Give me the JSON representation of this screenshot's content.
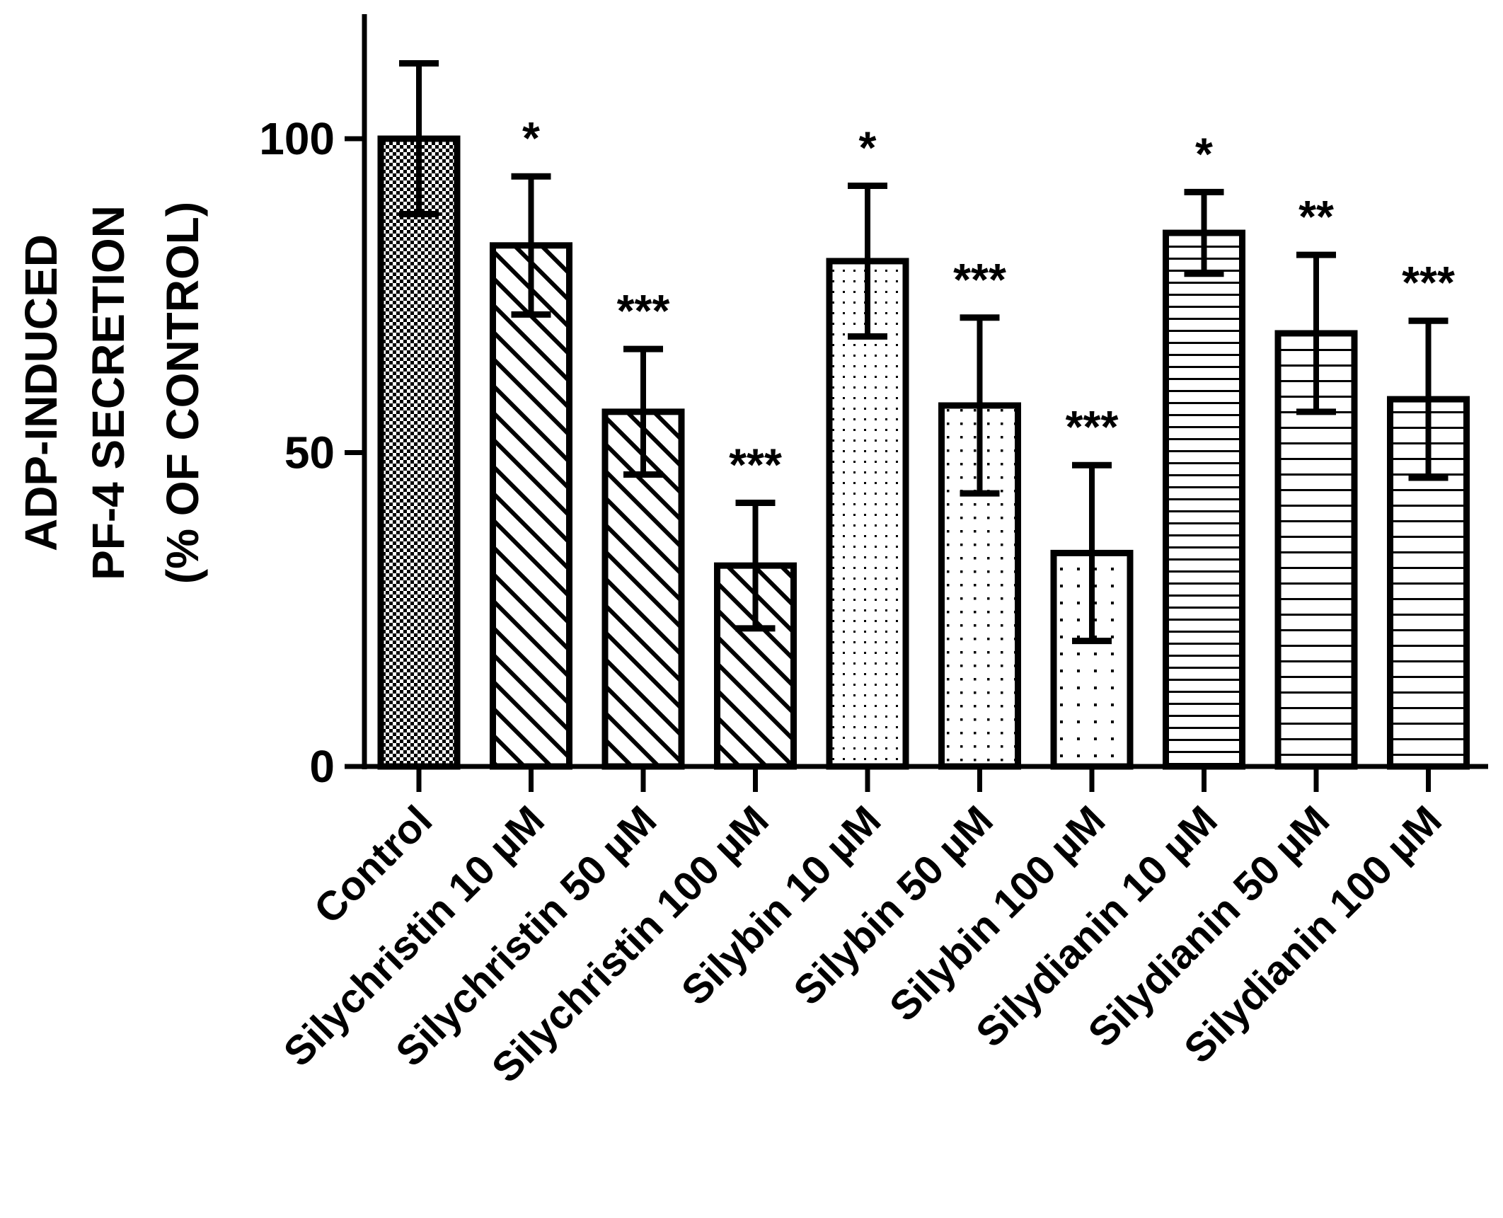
{
  "chart_data": {
    "type": "bar",
    "title": "",
    "xlabel": "",
    "ylabel": [
      "ADP-INDUCED",
      "PF-4 SECRETION",
      "(% OF CONTROL)"
    ],
    "ylim": [
      0,
      120
    ],
    "yticks": [
      0,
      50,
      100
    ],
    "categories": [
      "Control",
      "Silychristin 10 µM",
      "Silychristin 50 µM",
      "Silychristin 100 µM",
      "Silybin 10 µM",
      "Silybin 50 µM",
      "Silybin 100 µM",
      "Silydianin 10 µM",
      "Silydianin 50 µM",
      "Silydianin 100 µM"
    ],
    "values": [
      100,
      83,
      56.5,
      32,
      80.5,
      57.5,
      34,
      85,
      69,
      58.5
    ],
    "errors": [
      12,
      11,
      10,
      10,
      12,
      14,
      14,
      6.5,
      12.5,
      12.5
    ],
    "significance": [
      "",
      "*",
      "***",
      "***",
      "*",
      "***",
      "***",
      "*",
      "**",
      "***"
    ],
    "patterns": [
      "checker",
      "diagonal",
      "diagonal",
      "diagonal",
      "dots-fine",
      "dots-medium",
      "dots-sparse",
      "horizontal",
      "horizontal-wide",
      "horizontal-wide"
    ],
    "colors": {
      "stroke": "#000000",
      "fill": "#ffffff"
    }
  }
}
